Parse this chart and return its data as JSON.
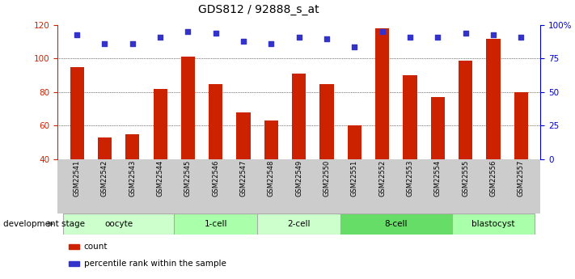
{
  "title": "GDS812 / 92888_s_at",
  "samples": [
    "GSM22541",
    "GSM22542",
    "GSM22543",
    "GSM22544",
    "GSM22545",
    "GSM22546",
    "GSM22547",
    "GSM22548",
    "GSM22549",
    "GSM22550",
    "GSM22551",
    "GSM22552",
    "GSM22553",
    "GSM22554",
    "GSM22555",
    "GSM22556",
    "GSM22557"
  ],
  "counts": [
    95,
    53,
    55,
    82,
    101,
    85,
    68,
    63,
    91,
    85,
    60,
    118,
    90,
    77,
    99,
    112,
    80
  ],
  "percentiles": [
    93,
    86,
    86,
    91,
    95,
    94,
    88,
    86,
    91,
    90,
    84,
    95,
    91,
    91,
    94,
    93,
    91
  ],
  "bar_color": "#cc2200",
  "dot_color": "#3333cc",
  "background_color": "#ffffff",
  "bar_bottom": 40,
  "ylim_left": [
    40,
    120
  ],
  "ylim_right": [
    0,
    100
  ],
  "yticks_left": [
    40,
    60,
    80,
    100,
    120
  ],
  "yticks_right": [
    0,
    25,
    50,
    75,
    100
  ],
  "ytick_labels_right": [
    "0",
    "25",
    "50",
    "75",
    "100%"
  ],
  "grid_values": [
    60,
    80,
    100
  ],
  "stages": [
    {
      "label": "oocyte",
      "start": 0,
      "end": 4,
      "color": "#ccffcc"
    },
    {
      "label": "1-cell",
      "start": 4,
      "end": 7,
      "color": "#aaffaa"
    },
    {
      "label": "2-cell",
      "start": 7,
      "end": 10,
      "color": "#ccffcc"
    },
    {
      "label": "8-cell",
      "start": 10,
      "end": 14,
      "color": "#66dd66"
    },
    {
      "label": "blastocyst",
      "start": 14,
      "end": 17,
      "color": "#aaffaa"
    }
  ],
  "legend_count_label": "count",
  "legend_percentile_label": "percentile rank within the sample",
  "dev_stage_label": "development stage",
  "title_fontsize": 10,
  "axis_label_color_left": "#cc2200",
  "axis_label_color_right": "#0000cc"
}
